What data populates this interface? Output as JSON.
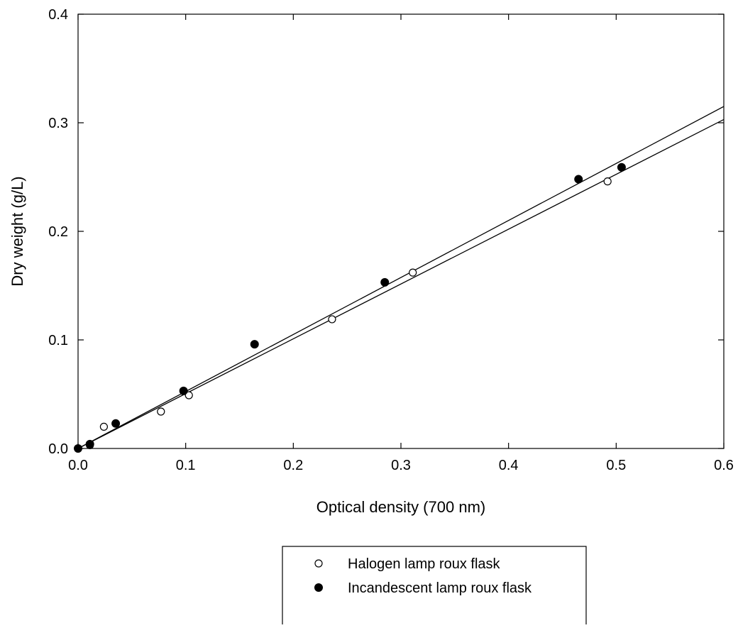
{
  "chart_data": {
    "type": "scatter",
    "xlabel": "Optical density (700 nm)",
    "ylabel": "Dry weight (g/L)",
    "xlim": [
      0.0,
      0.6
    ],
    "ylim": [
      0.0,
      0.4
    ],
    "x_ticks": [
      0.0,
      0.1,
      0.2,
      0.3,
      0.4,
      0.5,
      0.6
    ],
    "x_tick_labels": [
      "0.0",
      "0.1",
      "0.2",
      "0.3",
      "0.4",
      "0.5",
      "0.6"
    ],
    "y_ticks": [
      0.0,
      0.1,
      0.2,
      0.3,
      0.4
    ],
    "y_tick_labels": [
      "0.0",
      "0.1",
      "0.2",
      "0.3",
      "0.4"
    ],
    "grid": false,
    "legend_position": "bottom-center, below plot",
    "series": [
      {
        "name": "Halogen lamp roux flask",
        "marker": "open-circle",
        "x": [
          0.0,
          0.011,
          0.024,
          0.077,
          0.103,
          0.236,
          0.311,
          0.492
        ],
        "y": [
          0.0,
          0.003,
          0.02,
          0.034,
          0.049,
          0.119,
          0.162,
          0.246
        ],
        "fit_line": {
          "x": [
            0.0,
            0.6
          ],
          "y": [
            0.0,
            0.303
          ]
        }
      },
      {
        "name": "Incandescent lamp roux flask",
        "marker": "filled-circle",
        "x": [
          0.0,
          0.011,
          0.035,
          0.098,
          0.164,
          0.285,
          0.465,
          0.505
        ],
        "y": [
          0.0,
          0.004,
          0.023,
          0.053,
          0.096,
          0.153,
          0.248,
          0.259
        ],
        "fit_line": {
          "x": [
            0.0,
            0.6
          ],
          "y": [
            0.0,
            0.315
          ]
        }
      }
    ]
  }
}
